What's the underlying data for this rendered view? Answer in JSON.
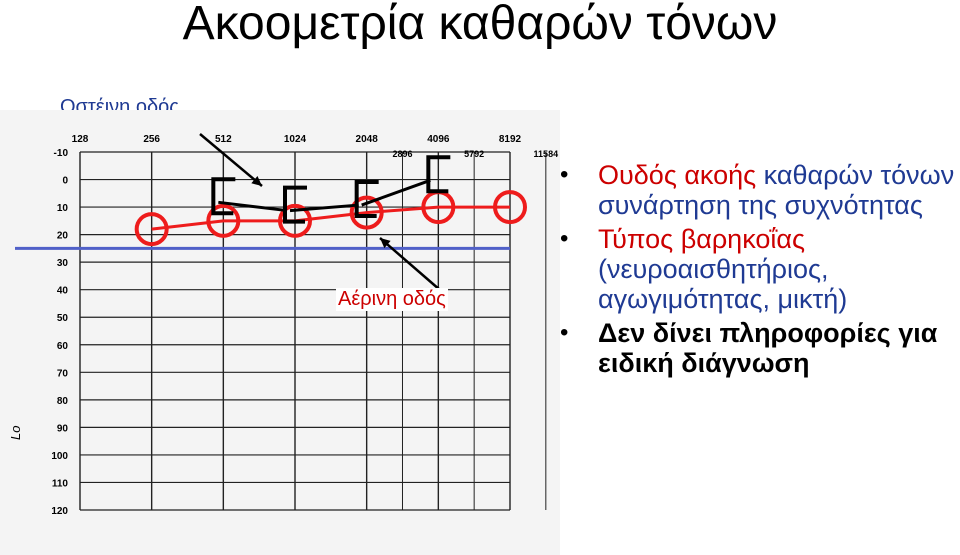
{
  "title": "Ακοομετρία καθαρών τόνων",
  "labels": {
    "bone": "Οστέινη οδός",
    "air": "Αέρινη οδός"
  },
  "bullets": [
    {
      "key": "Ουδός ακοής",
      "rest": " καθαρών τόνων  συνάρτηση της συχνότητας"
    },
    {
      "key": "Τύπος βαρηκοΐας",
      "rest": "(νευροαισθητήριος, αγωγιμότητας, μικτή)"
    },
    {
      "text": "Δεν δίνει πληροφορίες για ειδική διάγνωση"
    }
  ],
  "colors": {
    "air": "#ee1c1c",
    "bone": "#000000",
    "normal_line": "#5060c8",
    "label_blue": "#1f3a93"
  },
  "chart_data": {
    "type": "line",
    "x_ticks_top": [
      "128",
      "256",
      "512",
      "1024",
      "2048",
      "4096",
      "8192"
    ],
    "x_ticks_half": [
      "2896",
      "5792",
      "11584"
    ],
    "y_ticks": [
      "-10",
      "0",
      "10",
      "20",
      "30",
      "40",
      "50",
      "60",
      "70",
      "80",
      "90",
      "100",
      "110",
      "120"
    ],
    "ylim": [
      -10,
      120
    ],
    "y_inverted": true,
    "y_axis_label": "Lo",
    "normal_threshold": 25,
    "series": [
      {
        "name": "Αέρινη οδός",
        "marker": "circle",
        "x": [
          256,
          512,
          1024,
          2048,
          4096,
          8192
        ],
        "y": [
          18,
          15,
          15,
          12,
          10,
          10
        ]
      },
      {
        "name": "Οστέινη οδός",
        "marker": "bracket",
        "x": [
          512,
          1024,
          2048,
          4096
        ],
        "y": [
          5,
          8,
          6,
          -3
        ]
      }
    ]
  }
}
